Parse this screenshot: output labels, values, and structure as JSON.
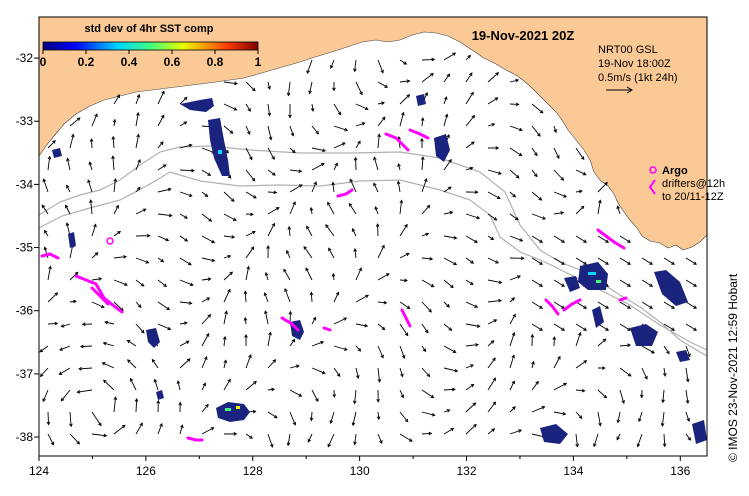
{
  "map": {
    "title": "19-Nov-2021 20Z",
    "x_ticks": [
      "124",
      "126",
      "128",
      "130",
      "132",
      "134",
      "136"
    ],
    "y_ticks": [
      "-32",
      "-33",
      "-34",
      "-35",
      "-36",
      "-37",
      "-38"
    ],
    "lon_range": [
      124,
      136.5
    ],
    "lat_range": [
      -31.35,
      -38.3
    ]
  },
  "colorbar": {
    "title": "std dev of 4hr SST comp",
    "ticks": [
      "0",
      "0.2",
      "0.4",
      "0.6",
      "0.8",
      "1"
    ]
  },
  "current_legend": {
    "line1": "NRT00 GSL",
    "line2": "19-Nov 18:00Z",
    "line3": "0.5m/s (1kt 24h)"
  },
  "argo_legend": {
    "label": "Argo",
    "line1": "drifters@12h",
    "line2": "to 20/11-12Z"
  },
  "credit": "© IMOS 23-Nov-2021 12:59 Hobart",
  "colors": {
    "land": "#fbc995",
    "drifter": "#ff00ff",
    "sst_patch": "#1a237e",
    "isobath": "#b0b0b0"
  }
}
